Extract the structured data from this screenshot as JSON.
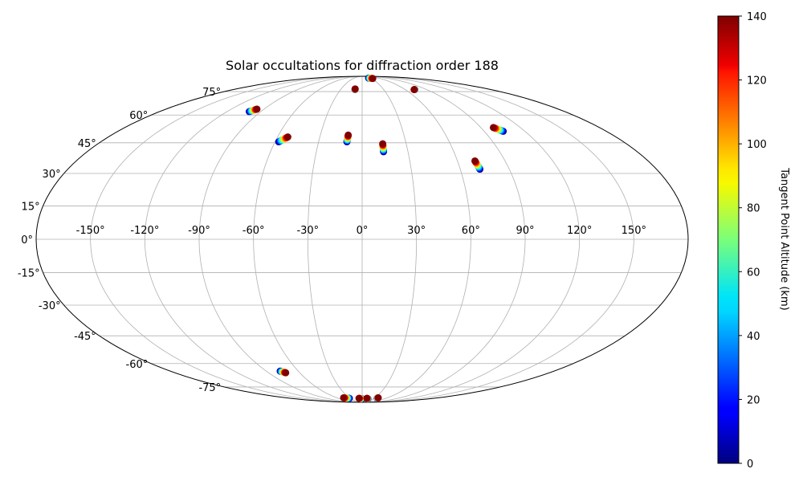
{
  "chart_data": {
    "type": "scatter",
    "projection": "mollweide",
    "title": "Solar occultations for diffraction order 188",
    "grid": true,
    "lon_ticks": [
      -150,
      -120,
      -90,
      -60,
      -30,
      0,
      30,
      60,
      90,
      120,
      150
    ],
    "lat_ticks": [
      -75,
      -60,
      -45,
      -30,
      -15,
      0,
      15,
      30,
      45,
      60,
      75
    ],
    "lon_tick_labels": [
      "-150°",
      "-120°",
      "-90°",
      "-60°",
      "-30°",
      "0°",
      "30°",
      "60°",
      "90°",
      "120°",
      "150°"
    ],
    "lat_tick_labels": [
      "-75°",
      "-60°",
      "-45°",
      "-30°",
      "-15°",
      "0°",
      "15°",
      "30°",
      "45°",
      "60°",
      "75°"
    ],
    "colorbar": {
      "label": "Tangent Point Altitude (km)",
      "min": 0,
      "max": 140,
      "ticks": [
        0,
        20,
        40,
        60,
        80,
        100,
        120,
        140
      ],
      "tick_labels": [
        "0",
        "20",
        "40",
        "60",
        "80",
        "100",
        "120",
        "140"
      ],
      "colormap": "jet",
      "placement": "right"
    },
    "occultations": [
      {
        "start": [
          -100.3,
          62.0
        ],
        "end": [
          -96.5,
          63.5
        ]
      },
      {
        "start": [
          -57.5,
          45.5
        ],
        "end": [
          -52.7,
          48.0
        ]
      },
      {
        "start": [
          -10.0,
          76.5
        ],
        "end": [
          -10.0,
          77.0
        ]
      },
      {
        "start": [
          -10.5,
          45.5
        ],
        "end": [
          -10.0,
          49.0
        ]
      },
      {
        "start": [
          14.0,
          40.5
        ],
        "end": [
          14.0,
          44.5
        ]
      },
      {
        "start": [
          24.0,
          87.0
        ],
        "end": [
          36.0,
          86.5
        ]
      },
      {
        "start": [
          73.5,
          76.5
        ],
        "end": [
          72.5,
          76.5
        ]
      },
      {
        "start": [
          72.0,
          32.0
        ],
        "end": [
          71.0,
          36.0
        ]
      },
      {
        "start": [
          104.0,
          51.0
        ],
        "end": [
          99.5,
          53.0
        ]
      },
      {
        "start": [
          -77.0,
          -64.5
        ],
        "end": [
          -73.5,
          -65.5
        ]
      },
      {
        "start": [
          -32.0,
          -84.5
        ],
        "end": [
          -44.0,
          -84.0
        ]
      },
      {
        "start": [
          -0.5,
          -85.0
        ],
        "end": [
          -8.0,
          -84.5
        ]
      },
      {
        "start": [
          15.5,
          -85.0
        ],
        "end": [
          12.0,
          -84.5
        ]
      },
      {
        "start": [
          38.0,
          -84.5
        ],
        "end": [
          38.0,
          -84.0
        ]
      }
    ]
  }
}
